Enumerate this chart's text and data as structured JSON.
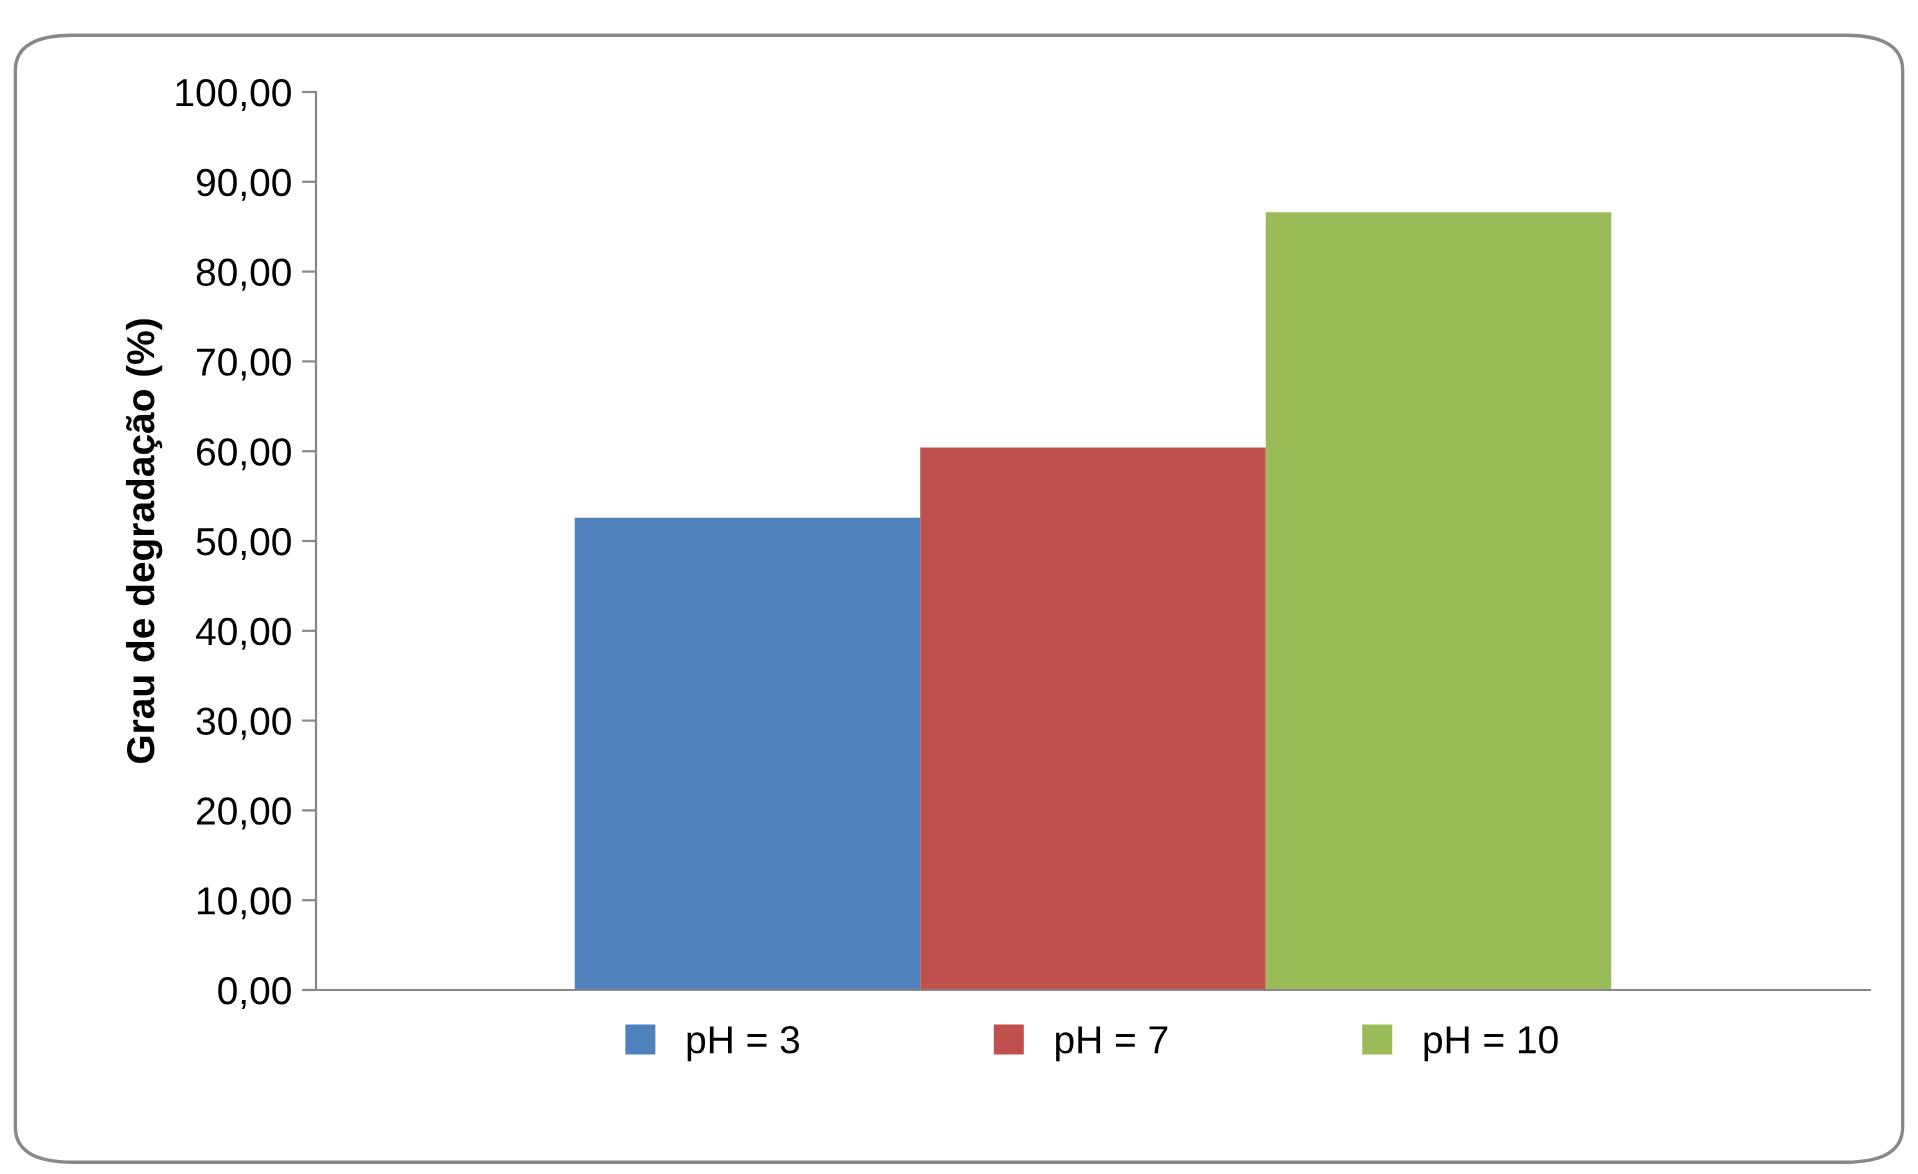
{
  "chart_data": {
    "type": "bar",
    "ylabel": "Grau de degradação (%)",
    "categories": [
      null
    ],
    "series": [
      {
        "name": "pH = 3",
        "color": "#4f81bd",
        "values": [
          52.6
        ]
      },
      {
        "name": "pH = 7",
        "color": "#c0504d",
        "values": [
          60.4
        ]
      },
      {
        "name": "pH = 10",
        "color": "#9bbb59",
        "values": [
          86.6
        ]
      }
    ],
    "ylim": [
      0,
      100
    ],
    "yticks": [
      {
        "value": 0,
        "label": "0,00"
      },
      {
        "value": 10,
        "label": "10,00"
      },
      {
        "value": 20,
        "label": "20,00"
      },
      {
        "value": 30,
        "label": "30,00"
      },
      {
        "value": 40,
        "label": "40,00"
      },
      {
        "value": 50,
        "label": "50,00"
      },
      {
        "value": 60,
        "label": "60,00"
      },
      {
        "value": 70,
        "label": "70,00"
      },
      {
        "value": 80,
        "label": "80,00"
      },
      {
        "value": 90,
        "label": "90,00"
      },
      {
        "value": 100,
        "label": "100,00"
      }
    ],
    "grid": false,
    "legend": "bottom"
  }
}
